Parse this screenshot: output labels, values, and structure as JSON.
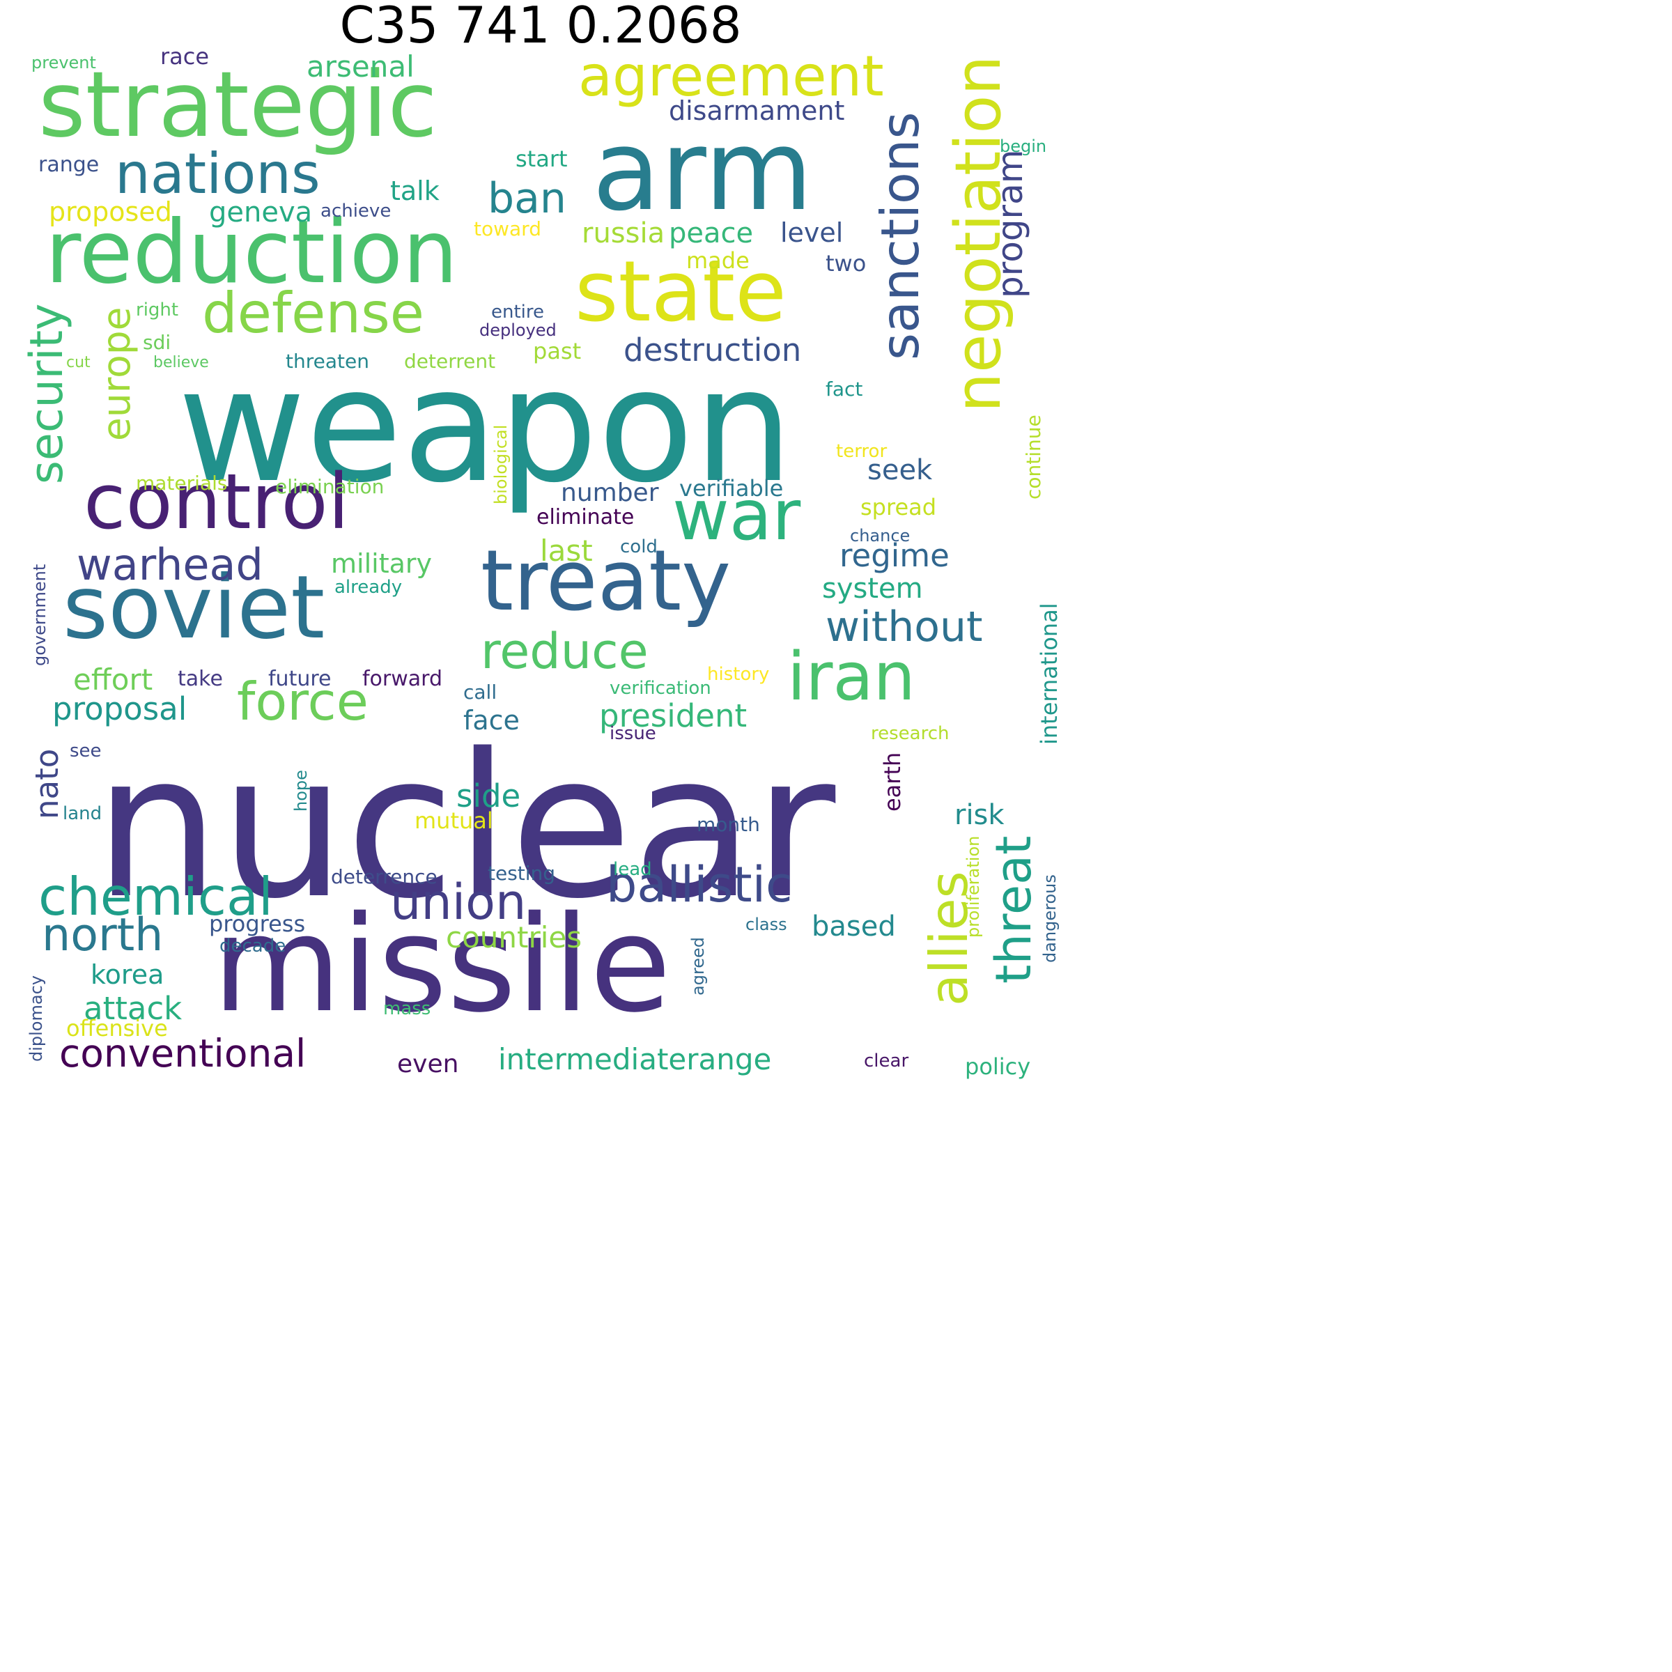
{
  "title": "C35 741 0.2068",
  "words": [
    {
      "text": "nuclear",
      "color": "#453781"
    },
    {
      "text": "weapon",
      "color": "#21918c"
    },
    {
      "text": "missile",
      "color": "#46327e"
    },
    {
      "text": "arm",
      "color": "#287d8e"
    },
    {
      "text": "strategic",
      "color": "#5ec962"
    },
    {
      "text": "state",
      "color": "#dde318"
    },
    {
      "text": "reduction",
      "color": "#4ac16d"
    },
    {
      "text": "soviet",
      "color": "#2c728e"
    },
    {
      "text": "treaty",
      "color": "#33638d"
    },
    {
      "text": "control",
      "color": "#482173"
    },
    {
      "text": "war",
      "color": "#2db27d"
    },
    {
      "text": "negotiation",
      "color": "#d0e11c"
    },
    {
      "text": "agreement",
      "color": "#d8e219"
    },
    {
      "text": "iran",
      "color": "#4ac16d"
    },
    {
      "text": "nations",
      "color": "#2a788e"
    },
    {
      "text": "defense",
      "color": "#86d549"
    },
    {
      "text": "force",
      "color": "#6ccd5a"
    },
    {
      "text": "reduce",
      "color": "#52c569"
    },
    {
      "text": "sanctions",
      "color": "#39568c"
    },
    {
      "text": "ballistic",
      "color": "#3e4a89"
    },
    {
      "text": "chemical",
      "color": "#1f9e89"
    },
    {
      "text": "union",
      "color": "#433e85"
    },
    {
      "text": "program",
      "color": "#404688"
    },
    {
      "text": "threat",
      "color": "#1f9f88"
    },
    {
      "text": "allies",
      "color": "#bddf26"
    },
    {
      "text": "warhead",
      "color": "#414487"
    },
    {
      "text": "without",
      "color": "#2d708e"
    },
    {
      "text": "conventional",
      "color": "#440154"
    },
    {
      "text": "north",
      "color": "#2a788e"
    },
    {
      "text": "security",
      "color": "#3bbb75"
    },
    {
      "text": "europe",
      "color": "#a0da39"
    },
    {
      "text": "ban",
      "color": "#25848e"
    },
    {
      "text": "president",
      "color": "#35b779"
    },
    {
      "text": "intermediaterange",
      "color": "#27ad81"
    },
    {
      "text": "destruction",
      "color": "#3b528b"
    },
    {
      "text": "disarmament",
      "color": "#3e4989"
    },
    {
      "text": "arsenal",
      "color": "#3dbc74"
    },
    {
      "text": "proposal",
      "color": "#1f968b"
    },
    {
      "text": "countries",
      "color": "#8ed645"
    },
    {
      "text": "side",
      "color": "#1fa088"
    },
    {
      "text": "attack",
      "color": "#29af7f"
    },
    {
      "text": "nato",
      "color": "#3f4788"
    },
    {
      "text": "regime",
      "color": "#31668e"
    },
    {
      "text": "russia",
      "color": "#a5db36"
    },
    {
      "text": "based",
      "color": "#23898e"
    },
    {
      "text": "effort",
      "color": "#6ece58"
    },
    {
      "text": "korea",
      "color": "#1e9c89"
    },
    {
      "text": "peace",
      "color": "#35b779"
    },
    {
      "text": "proposed",
      "color": "#e5e419"
    },
    {
      "text": "geneva",
      "color": "#25ab82"
    },
    {
      "text": "talk",
      "color": "#20a386"
    },
    {
      "text": "level",
      "color": "#3a548c"
    },
    {
      "text": "offensive",
      "color": "#dae319"
    },
    {
      "text": "continue",
      "color": "#b5de2b"
    },
    {
      "text": "military",
      "color": "#58c765"
    },
    {
      "text": "last",
      "color": "#9bd93c"
    },
    {
      "text": "face",
      "color": "#2c738e"
    },
    {
      "text": "risk",
      "color": "#228c8d"
    },
    {
      "text": "system",
      "color": "#24aa83"
    },
    {
      "text": "number",
      "color": "#38598c"
    },
    {
      "text": "seek",
      "color": "#355f8d"
    },
    {
      "text": "international",
      "color": "#1f978b"
    },
    {
      "text": "earth",
      "color": "#440154"
    },
    {
      "text": "even",
      "color": "#471063"
    },
    {
      "text": "policy",
      "color": "#2db27d"
    },
    {
      "text": "range",
      "color": "#3b518b"
    },
    {
      "text": "race",
      "color": "#46337f"
    },
    {
      "text": "start",
      "color": "#22a884"
    },
    {
      "text": "made",
      "color": "#cde11d"
    },
    {
      "text": "two",
      "color": "#3b528b"
    },
    {
      "text": "past",
      "color": "#a2da37"
    },
    {
      "text": "progress",
      "color": "#39568c"
    },
    {
      "text": "verifiable",
      "color": "#2a788e"
    },
    {
      "text": "mutual",
      "color": "#e2e418"
    },
    {
      "text": "spread",
      "color": "#c5e021"
    },
    {
      "text": "eliminate",
      "color": "#440154"
    },
    {
      "text": "elimination",
      "color": "#7ad151"
    },
    {
      "text": "materials",
      "color": "#addc30"
    },
    {
      "text": "future",
      "color": "#3f4788"
    },
    {
      "text": "forward",
      "color": "#48186a"
    },
    {
      "text": "take",
      "color": "#443a83"
    },
    {
      "text": "deterrence",
      "color": "#3e4c8a"
    },
    {
      "text": "testing",
      "color": "#34618d"
    },
    {
      "text": "decade",
      "color": "#2f6b8e"
    },
    {
      "text": "threaten",
      "color": "#24878e"
    },
    {
      "text": "deterrent",
      "color": "#90d743"
    },
    {
      "text": "sdi",
      "color": "#6ccd5a"
    },
    {
      "text": "fact",
      "color": "#1f958b"
    },
    {
      "text": "cold",
      "color": "#2e6f8e"
    },
    {
      "text": "already",
      "color": "#1fa088"
    },
    {
      "text": "verification",
      "color": "#3aba76"
    },
    {
      "text": "history",
      "color": "#fde725"
    },
    {
      "text": "research",
      "color": "#b2dd2d"
    },
    {
      "text": "call",
      "color": "#2f6c8e"
    },
    {
      "text": "issue",
      "color": "#482475"
    },
    {
      "text": "see",
      "color": "#3e4a89"
    },
    {
      "text": "land",
      "color": "#25838e"
    },
    {
      "text": "month",
      "color": "#375b8d"
    },
    {
      "text": "hope",
      "color": "#238a8d"
    },
    {
      "text": "lead",
      "color": "#26ad81"
    },
    {
      "text": "class",
      "color": "#2c728e"
    },
    {
      "text": "agreed",
      "color": "#31688e"
    },
    {
      "text": "mass",
      "color": "#3fbc73"
    },
    {
      "text": "clear",
      "color": "#481668"
    },
    {
      "text": "proliferation",
      "color": "#b8de29"
    },
    {
      "text": "dangerous",
      "color": "#33638d"
    },
    {
      "text": "diplomacy",
      "color": "#3b528b"
    },
    {
      "text": "government",
      "color": "#3e4989"
    },
    {
      "text": "biological",
      "color": "#c2df23"
    },
    {
      "text": "terror",
      "color": "#f1e51d"
    },
    {
      "text": "chance",
      "color": "#355e8d"
    },
    {
      "text": "toward",
      "color": "#fde725"
    },
    {
      "text": "achieve",
      "color": "#3d4e8a"
    },
    {
      "text": "entire",
      "color": "#38588c"
    },
    {
      "text": "deployed",
      "color": "#46307e"
    },
    {
      "text": "right",
      "color": "#5ec962"
    },
    {
      "text": "believe",
      "color": "#5cc863"
    },
    {
      "text": "cut",
      "color": "#86d549"
    },
    {
      "text": "prevent",
      "color": "#4ac16d"
    },
    {
      "text": "begin",
      "color": "#29af7f"
    }
  ]
}
